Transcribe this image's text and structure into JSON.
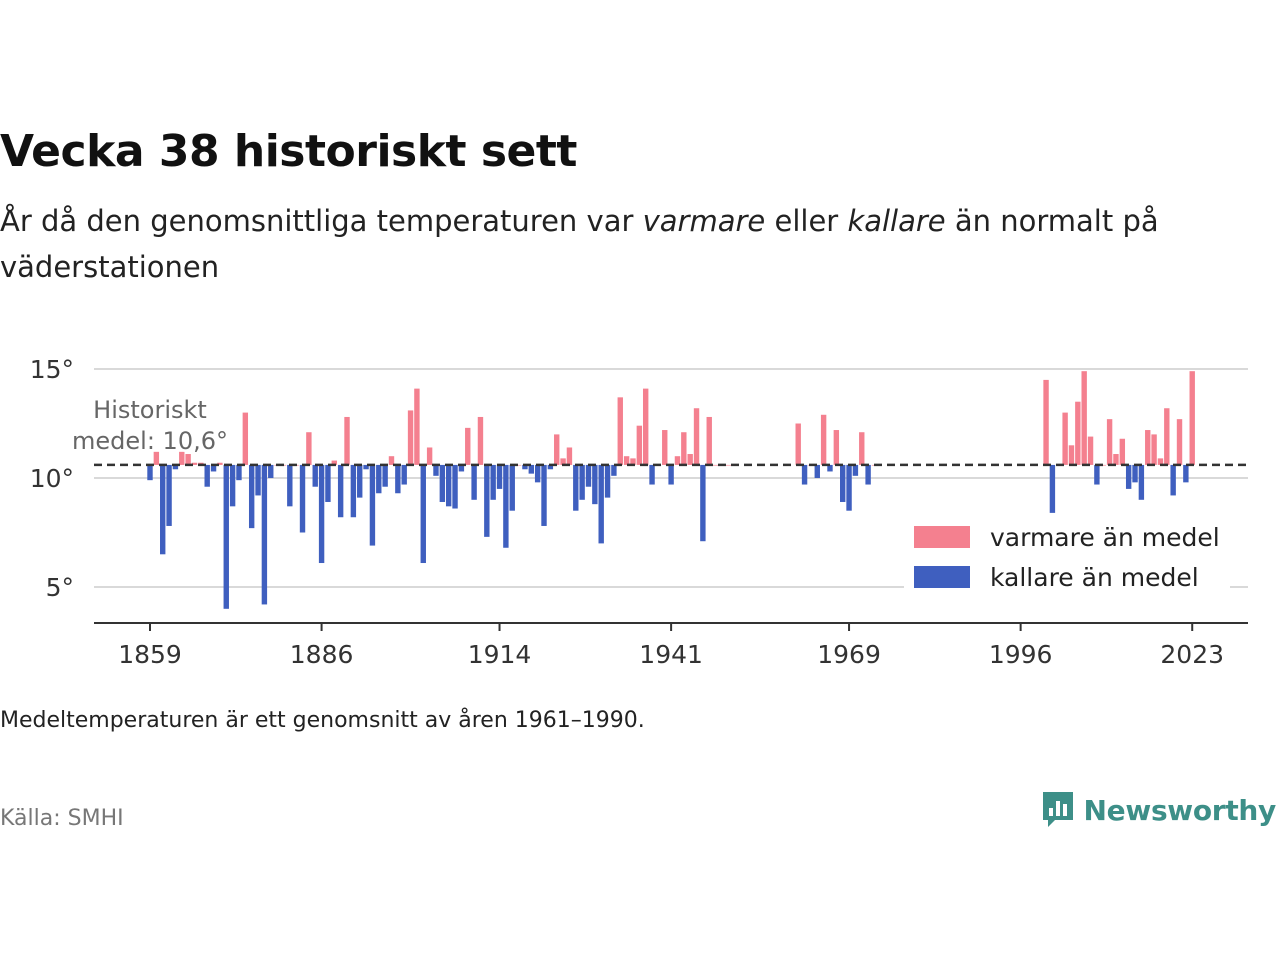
{
  "title": "Vecka 38 historiskt sett",
  "subtitle": {
    "before": "År då den genomsnittliga temperaturen var ",
    "warm_word": "varmare",
    "middle": " eller ",
    "cold_word": "kallare",
    "after": " än normalt på väderstationen"
  },
  "footnote": "Medeltemperaturen är ett genomsnitt av åren 1961–1990.",
  "source": "Källa: SMHI",
  "brand": {
    "name": "Newsworthy",
    "icon": "newsworthy-logo-icon"
  },
  "colors": {
    "warm": "#f4808f",
    "cold": "#3f5fbf",
    "baseline": "#333333",
    "grid": "#d9d9d9",
    "brand": "#3d8f88"
  },
  "chart_data": {
    "type": "bar",
    "baseline": 10.6,
    "baseline_label": [
      "Historiskt",
      "medel: 10,6°"
    ],
    "ylim": [
      3.5,
      16
    ],
    "y_ticks": [
      5,
      10,
      15
    ],
    "y_tick_labels": [
      "5°",
      "10°",
      "15°"
    ],
    "xlim": [
      1850,
      2032
    ],
    "x_ticks": [
      1859,
      1886,
      1914,
      1941,
      1969,
      1996,
      2023
    ],
    "x_tick_labels": [
      "1859",
      "1886",
      "1914",
      "1941",
      "1969",
      "1996",
      "2023"
    ],
    "legend": {
      "position": "right",
      "warm_label": "varmare än medel",
      "cold_label": "kallare än medel"
    },
    "years": [
      1859,
      1860,
      1861,
      1862,
      1863,
      1864,
      1865,
      1866,
      1867,
      1868,
      1869,
      1870,
      1871,
      1872,
      1873,
      1874,
      1875,
      1876,
      1877,
      1878,
      1879,
      1880,
      1881,
      1882,
      1883,
      1884,
      1885,
      1886,
      1887,
      1888,
      1889,
      1890,
      1891,
      1892,
      1893,
      1894,
      1895,
      1896,
      1897,
      1898,
      1899,
      1900,
      1901,
      1902,
      1903,
      1904,
      1905,
      1906,
      1907,
      1908,
      1909,
      1910,
      1911,
      1912,
      1913,
      1914,
      1915,
      1916,
      1917,
      1918,
      1919,
      1920,
      1921,
      1922,
      1923,
      1924,
      1925,
      1926,
      1927,
      1928,
      1929,
      1930,
      1931,
      1932,
      1933,
      1934,
      1935,
      1936,
      1937,
      1938,
      1939,
      1940,
      1941,
      1942,
      1943,
      1944,
      1945,
      1946,
      1947,
      1948,
      1949,
      1950,
      1961,
      1962,
      1963,
      1964,
      1965,
      1966,
      1967,
      1968,
      1969,
      1970,
      1971,
      1972,
      1973,
      2000,
      2001,
      2003,
      2004,
      2005,
      2006,
      2007,
      2008,
      2009,
      2010,
      2011,
      2012,
      2013,
      2014,
      2015,
      2016,
      2017,
      2018,
      2019,
      2020,
      2021,
      2022,
      2023
    ],
    "values": [
      9.9,
      11.2,
      6.5,
      7.8,
      10.4,
      11.2,
      11.1,
      10.7,
      10.7,
      9.6,
      10.3,
      10.7,
      4.0,
      8.7,
      9.9,
      13.0,
      7.7,
      9.2,
      4.2,
      10.0,
      10.6,
      10.6,
      8.7,
      10.6,
      7.5,
      12.1,
      9.6,
      6.1,
      8.9,
      10.8,
      8.2,
      12.8,
      8.2,
      9.1,
      10.4,
      6.9,
      9.3,
      9.6,
      11.0,
      9.3,
      9.7,
      13.1,
      14.1,
      6.1,
      11.4,
      10.1,
      8.9,
      8.7,
      8.6,
      10.3,
      12.3,
      9.0,
      12.8,
      7.3,
      9.0,
      9.5,
      6.8,
      8.5,
      10.6,
      10.4,
      10.2,
      9.8,
      7.8,
      10.4,
      12.0,
      10.9,
      11.4,
      8.5,
      9.0,
      9.6,
      8.8,
      7.0,
      9.1,
      10.1,
      13.7,
      11.0,
      10.9,
      12.4,
      14.1,
      9.7,
      10.6,
      12.2,
      9.7,
      11.0,
      12.1,
      11.1,
      13.2,
      7.1,
      12.8,
      10.6,
      10.6,
      10.6,
      12.5,
      9.7,
      10.6,
      10.0,
      12.9,
      10.3,
      12.2,
      8.9,
      8.5,
      10.1,
      12.1,
      9.7,
      10.6,
      14.5,
      8.4,
      13.0,
      11.5,
      13.5,
      14.9,
      11.9,
      9.7,
      10.6,
      12.7,
      11.1,
      11.8,
      9.5,
      9.8,
      9.0,
      12.2,
      12.0,
      10.9,
      13.2,
      9.2,
      12.7,
      9.8,
      14.9
    ]
  }
}
